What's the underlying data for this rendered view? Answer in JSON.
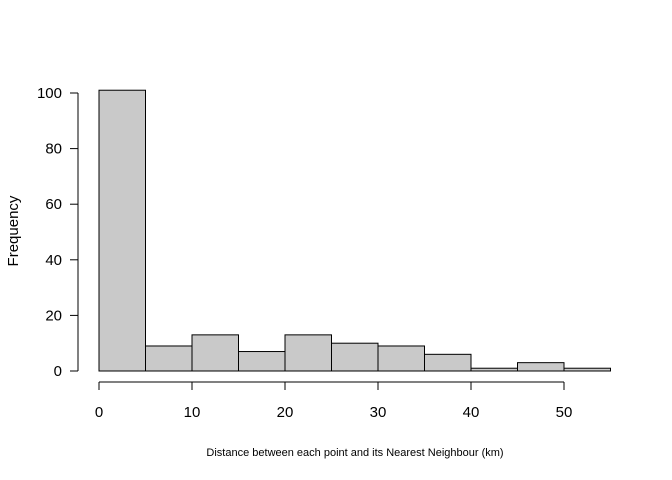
{
  "chart_data": {
    "type": "bar",
    "title": "",
    "xlabel": "Distance between each point and its Nearest Neighbour (km)",
    "ylabel": "Frequency",
    "bin_edges": [
      0,
      5,
      10,
      15,
      20,
      25,
      30,
      35,
      40,
      45,
      50,
      55
    ],
    "values": [
      101,
      9,
      13,
      7,
      13,
      10,
      9,
      6,
      1,
      3,
      1
    ],
    "xlim": [
      0,
      55
    ],
    "ylim": [
      0,
      100
    ],
    "x_ticks": [
      0,
      10,
      20,
      30,
      40,
      50
    ],
    "y_ticks": [
      0,
      20,
      40,
      60,
      80,
      100
    ],
    "bar_fill": "#c9c9c9",
    "bar_stroke": "#000000",
    "grid": false
  }
}
